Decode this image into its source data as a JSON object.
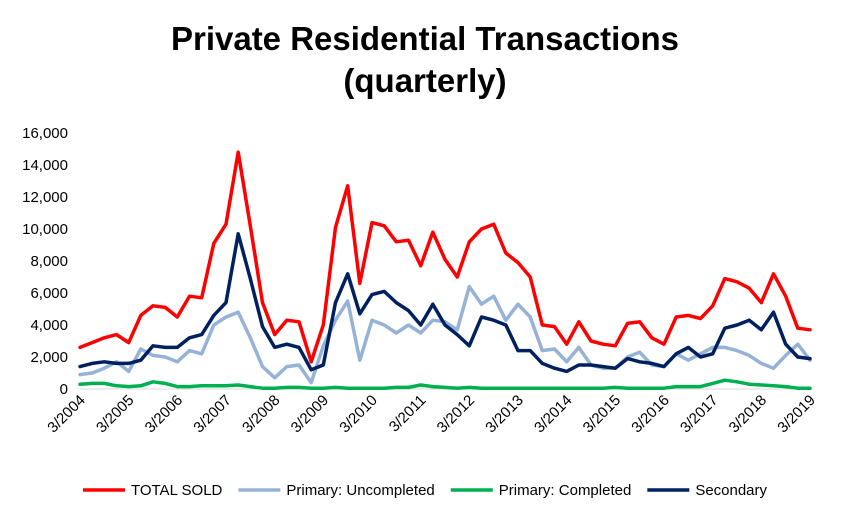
{
  "chart_data": {
    "type": "line",
    "title_lines": [
      "Private Residential Transactions",
      "(quarterly)"
    ],
    "x_tick_labels": [
      "3/2004",
      "3/2005",
      "3/2006",
      "3/2007",
      "3/2008",
      "3/2009",
      "3/2010",
      "3/2011",
      "3/2012",
      "3/2013",
      "3/2014",
      "3/2015",
      "3/2016",
      "3/2017",
      "3/2018",
      "3/2019"
    ],
    "ylim": [
      0,
      16000
    ],
    "y_ticks": [
      0,
      2000,
      4000,
      6000,
      8000,
      10000,
      12000,
      14000,
      16000
    ],
    "y_tick_labels": [
      "0",
      "2,000",
      "4,000",
      "6,000",
      "8,000",
      "10,000",
      "12,000",
      "14,000",
      "16,000"
    ],
    "grid": false,
    "legend_position": "bottom",
    "series": [
      {
        "name": "TOTAL SOLD",
        "color": "#ff0000",
        "values": [
          2600,
          2900,
          3200,
          3400,
          2900,
          4600,
          5200,
          5100,
          4500,
          5800,
          5700,
          9100,
          10300,
          14800,
          10200,
          5400,
          3400,
          4300,
          4200,
          1700,
          4000,
          10100,
          12700,
          6600,
          10400,
          10200,
          9200,
          9300,
          7700,
          9800,
          8100,
          7000,
          9200,
          10000,
          10300,
          8500,
          7900,
          7000,
          4000,
          3900,
          2800,
          4200,
          3000,
          2800,
          2700,
          4100,
          4200,
          3200,
          2800,
          4500,
          4600,
          4400,
          5200,
          6900,
          6700,
          6300,
          5400,
          7200,
          5800,
          3800,
          3700
        ]
      },
      {
        "name": "Primary: Uncompleted",
        "color": "#95b3d7",
        "values": [
          900,
          1000,
          1300,
          1700,
          1100,
          2500,
          2100,
          2000,
          1700,
          2400,
          2200,
          4000,
          4500,
          4800,
          3200,
          1400,
          700,
          1400,
          1500,
          400,
          2700,
          4300,
          5500,
          1800,
          4300,
          4000,
          3500,
          4000,
          3500,
          4300,
          4200,
          3700,
          6400,
          5300,
          5800,
          4300,
          5300,
          4500,
          2400,
          2500,
          1700,
          2600,
          1500,
          1300,
          1300,
          2000,
          2300,
          1500,
          1400,
          2200,
          1800,
          2200,
          2600,
          2600,
          2400,
          2100,
          1600,
          1300,
          2100,
          2800,
          1800
        ]
      },
      {
        "name": "Primary: Completed",
        "color": "#00b050",
        "values": [
          300,
          350,
          350,
          200,
          150,
          200,
          450,
          350,
          150,
          150,
          200,
          200,
          200,
          250,
          150,
          50,
          50,
          100,
          100,
          50,
          50,
          100,
          50,
          50,
          50,
          50,
          100,
          100,
          250,
          150,
          100,
          50,
          100,
          50,
          50,
          50,
          50,
          50,
          50,
          50,
          50,
          50,
          50,
          50,
          100,
          50,
          50,
          50,
          50,
          150,
          150,
          150,
          350,
          550,
          450,
          300,
          250,
          200,
          150,
          50,
          50
        ]
      },
      {
        "name": "Secondary",
        "color": "#002060",
        "values": [
          1400,
          1600,
          1700,
          1600,
          1600,
          1800,
          2700,
          2600,
          2600,
          3200,
          3400,
          4600,
          5400,
          9700,
          6900,
          3900,
          2600,
          2800,
          2600,
          1200,
          1500,
          5400,
          7200,
          4700,
          5900,
          6100,
          5400,
          4900,
          4000,
          5300,
          4000,
          3400,
          2700,
          4500,
          4300,
          4000,
          2400,
          2400,
          1600,
          1300,
          1100,
          1500,
          1500,
          1400,
          1300,
          1900,
          1700,
          1600,
          1400,
          2200,
          2600,
          2000,
          2200,
          3800,
          4000,
          4300,
          3700,
          4800,
          2800,
          2000,
          1900
        ]
      }
    ]
  }
}
